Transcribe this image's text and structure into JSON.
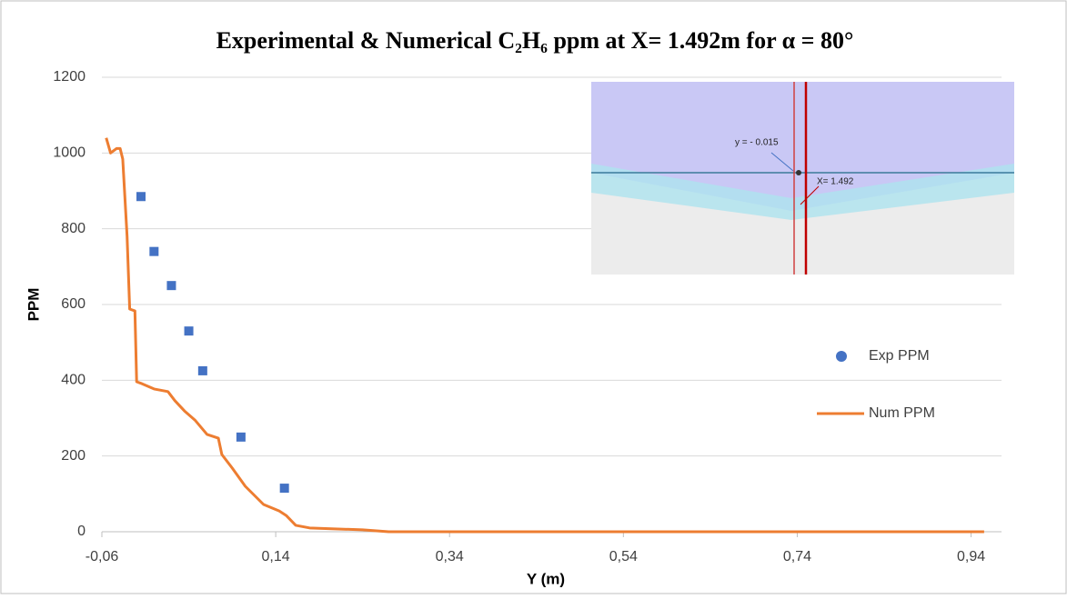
{
  "chart_data": {
    "type": "scatter-line",
    "title": "Experimental & Numerical C₂H₆ ppm at X= 1.492m for α = 80°",
    "x_label": "Y (m)",
    "y_label": "PPM",
    "xlim": [
      -0.06,
      0.975
    ],
    "ylim": [
      0,
      1200
    ],
    "xticks": [
      {
        "value": -0.06,
        "label": "-0,06"
      },
      {
        "value": 0.14,
        "label": "0,14"
      },
      {
        "value": 0.34,
        "label": "0,34"
      },
      {
        "value": 0.54,
        "label": "0,54"
      },
      {
        "value": 0.74,
        "label": "0,74"
      },
      {
        "value": 0.94,
        "label": "0,94"
      }
    ],
    "yticks": [
      0,
      200,
      400,
      600,
      800,
      1000,
      1200
    ],
    "grid": true,
    "legend": "right",
    "annotations": [
      "y = - 0.015",
      "X= 1.492"
    ],
    "series": [
      {
        "name": "Exp PPM",
        "color": "#4472c4",
        "kind": "scatter",
        "x": [
          -0.015,
          0.0,
          0.02,
          0.04,
          0.056,
          0.1,
          0.15
        ],
        "values": [
          885,
          740,
          650,
          530,
          425,
          250,
          115
        ]
      },
      {
        "name": "Num PPM",
        "color": "#ed7d31",
        "kind": "line",
        "x": [
          -0.055,
          -0.05,
          -0.043,
          -0.039,
          -0.036,
          -0.031,
          -0.028,
          -0.022,
          -0.02,
          -0.014,
          0.0,
          0.016,
          0.024,
          0.035,
          0.047,
          0.061,
          0.074,
          0.078,
          0.09,
          0.105,
          0.126,
          0.144,
          0.152,
          0.163,
          0.179,
          0.24,
          0.27,
          0.955
        ],
        "values": [
          1040,
          1000,
          1012,
          1012,
          984,
          780,
          588,
          583,
          396,
          391,
          377,
          370,
          346,
          319,
          295,
          257,
          247,
          204,
          168,
          120,
          72,
          55,
          43,
          17,
          10,
          5,
          0,
          0
        ]
      }
    ]
  }
}
